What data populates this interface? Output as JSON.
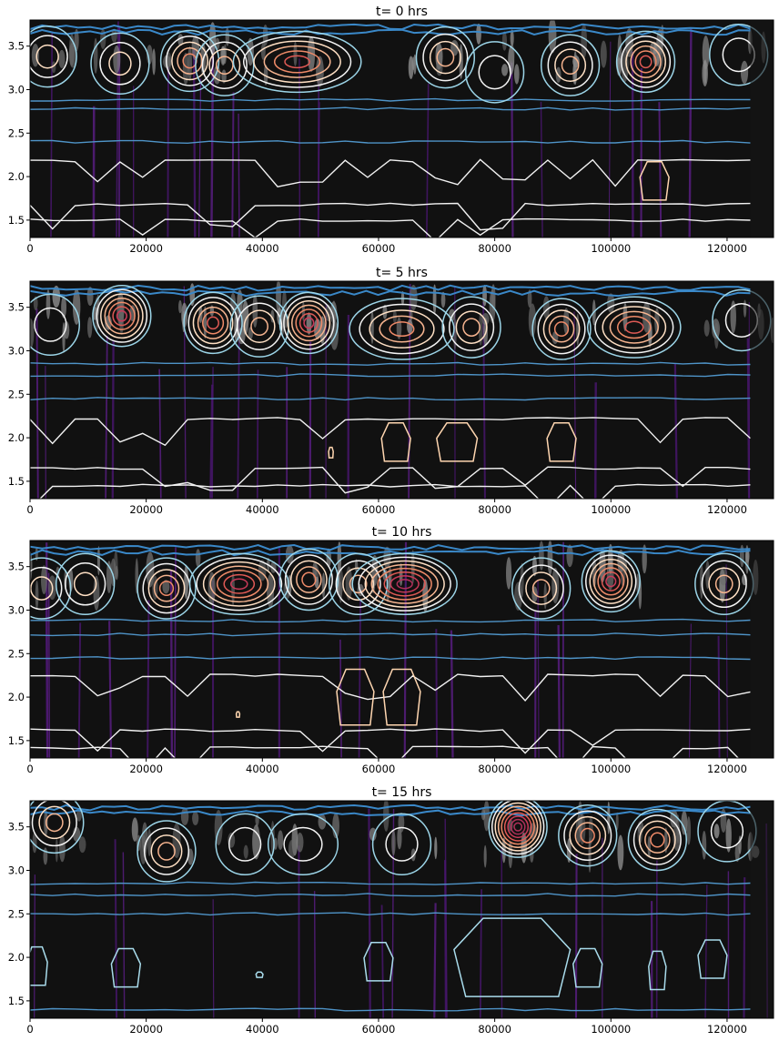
{
  "chart_data": [
    {
      "type": "contour",
      "title": "t=  0 hrs",
      "xlim": [
        0,
        128000
      ],
      "ylim": [
        1.3,
        3.8
      ],
      "xticks": [
        0,
        20000,
        40000,
        60000,
        80000,
        100000,
        120000
      ],
      "yticks": [
        1.5,
        2.0,
        2.5,
        3.0,
        3.5
      ],
      "grid": false,
      "background": "#111111",
      "cells": [
        {
          "x": 3000,
          "y": 3.38,
          "level": 2
        },
        {
          "x": 15500,
          "y": 3.3,
          "level": 2
        },
        {
          "x": 27500,
          "y": 3.33,
          "level": 4
        },
        {
          "x": 33500,
          "y": 3.28,
          "level": 3
        },
        {
          "x": 46000,
          "y": 3.32,
          "level": 5,
          "rx": 11000
        },
        {
          "x": 71500,
          "y": 3.37,
          "level": 3
        },
        {
          "x": 80000,
          "y": 3.2,
          "level": 1
        },
        {
          "x": 93000,
          "y": 3.28,
          "level": 3
        },
        {
          "x": 106000,
          "y": 3.32,
          "level": 5
        },
        {
          "x": 122000,
          "y": 3.4,
          "level": 1
        }
      ],
      "lower_cells": [
        {
          "x": 107500,
          "y": 1.95,
          "level": 4
        }
      ],
      "white_lines": [
        2.18,
        1.68,
        1.5
      ],
      "blue_lines": [
        2.4,
        2.78,
        2.88
      ]
    },
    {
      "type": "contour",
      "title": "t=  5 hrs",
      "xlim": [
        0,
        128000
      ],
      "ylim": [
        1.3,
        3.8
      ],
      "xticks": [
        0,
        20000,
        40000,
        60000,
        80000,
        100000,
        120000
      ],
      "yticks": [
        1.5,
        2.0,
        2.5,
        3.0,
        3.5
      ],
      "grid": false,
      "background": "#111111",
      "cells": [
        {
          "x": 3500,
          "y": 3.3,
          "level": 1
        },
        {
          "x": 15800,
          "y": 3.4,
          "level": 6
        },
        {
          "x": 31500,
          "y": 3.32,
          "level": 5
        },
        {
          "x": 39500,
          "y": 3.28,
          "level": 3
        },
        {
          "x": 48000,
          "y": 3.32,
          "level": 6
        },
        {
          "x": 64000,
          "y": 3.25,
          "level": 4,
          "rx": 9000
        },
        {
          "x": 76000,
          "y": 3.27,
          "level": 3
        },
        {
          "x": 91500,
          "y": 3.25,
          "level": 4
        },
        {
          "x": 104000,
          "y": 3.27,
          "level": 5,
          "rx": 8000
        },
        {
          "x": 122500,
          "y": 3.35,
          "level": 1
        }
      ],
      "lower_cells": [
        {
          "x": 51800,
          "y": 1.83,
          "level": 4,
          "rx": 400,
          "ry": 0.06
        },
        {
          "x": 63000,
          "y": 1.95,
          "level": 4
        },
        {
          "x": 73500,
          "y": 1.95,
          "level": 4,
          "rx": 3500
        },
        {
          "x": 91500,
          "y": 1.95,
          "level": 4
        }
      ],
      "white_lines": [
        2.22,
        1.65,
        1.45
      ],
      "blue_lines": [
        2.45,
        2.72,
        2.85
      ]
    },
    {
      "type": "contour",
      "title": "t= 10 hrs",
      "xlim": [
        0,
        128000
      ],
      "ylim": [
        1.3,
        3.8
      ],
      "xticks": [
        0,
        20000,
        40000,
        60000,
        80000,
        100000,
        120000
      ],
      "yticks": [
        1.5,
        2.0,
        2.5,
        3.0,
        3.5
      ],
      "grid": false,
      "background": "#111111",
      "cells": [
        {
          "x": 2000,
          "y": 3.25,
          "level": 2
        },
        {
          "x": 9500,
          "y": 3.3,
          "level": 2
        },
        {
          "x": 23500,
          "y": 3.25,
          "level": 4
        },
        {
          "x": 36000,
          "y": 3.3,
          "level": 6,
          "rx": 8500
        },
        {
          "x": 48000,
          "y": 3.35,
          "level": 4
        },
        {
          "x": 56500,
          "y": 3.3,
          "level": 3
        },
        {
          "x": 64500,
          "y": 3.3,
          "level": 7,
          "rx": 9000
        },
        {
          "x": 88000,
          "y": 3.25,
          "level": 3
        },
        {
          "x": 100000,
          "y": 3.33,
          "level": 6
        },
        {
          "x": 119500,
          "y": 3.3,
          "level": 3
        }
      ],
      "lower_cells": [
        {
          "x": 35800,
          "y": 1.8,
          "level": 4,
          "rx": 300,
          "ry": 0.03
        },
        {
          "x": 56000,
          "y": 2.0,
          "level": 4,
          "rx": 3200,
          "ry": 0.32
        },
        {
          "x": 64000,
          "y": 2.0,
          "level": 4,
          "rx": 3200,
          "ry": 0.32
        }
      ],
      "white_lines": [
        2.25,
        1.62,
        1.42
      ],
      "blue_lines": [
        2.45,
        2.72,
        2.88
      ]
    },
    {
      "type": "contour",
      "title": "t= 15 hrs",
      "xlim": [
        0,
        128000
      ],
      "ylim": [
        1.3,
        3.8
      ],
      "xticks": [
        0,
        20000,
        40000,
        60000,
        80000,
        100000,
        120000
      ],
      "yticks": [
        1.5,
        2.0,
        2.5,
        3.0,
        3.5
      ],
      "grid": false,
      "background": "#111111",
      "cells": [
        {
          "x": 4200,
          "y": 3.55,
          "level": 3
        },
        {
          "x": 23500,
          "y": 3.22,
          "level": 3
        },
        {
          "x": 37000,
          "y": 3.3,
          "level": 1
        },
        {
          "x": 47000,
          "y": 3.3,
          "level": 1,
          "rx": 6000
        },
        {
          "x": 64000,
          "y": 3.3,
          "level": 1
        },
        {
          "x": 84000,
          "y": 3.5,
          "level": 8
        },
        {
          "x": 96000,
          "y": 3.4,
          "level": 4
        },
        {
          "x": 108000,
          "y": 3.35,
          "level": 4
        },
        {
          "x": 120000,
          "y": 3.45,
          "level": 1
        }
      ],
      "lower_cells": [
        {
          "x": 1200,
          "y": 1.9,
          "level": 2,
          "rx": 1800
        },
        {
          "x": 16500,
          "y": 1.88,
          "level": 2
        },
        {
          "x": 39500,
          "y": 1.8,
          "level": 2,
          "rx": 600,
          "ry": 0.03
        },
        {
          "x": 60000,
          "y": 1.95,
          "level": 2
        },
        {
          "x": 83000,
          "y": 2.0,
          "level": 2,
          "rx": 10000,
          "ry": 0.45
        },
        {
          "x": 96000,
          "y": 1.88,
          "level": 2
        },
        {
          "x": 108000,
          "y": 1.85,
          "level": 2,
          "rx": 1500
        },
        {
          "x": 117500,
          "y": 1.98,
          "level": 2
        }
      ],
      "white_lines": [],
      "blue_lines": [
        1.4,
        2.5,
        2.72,
        2.85
      ]
    }
  ]
}
